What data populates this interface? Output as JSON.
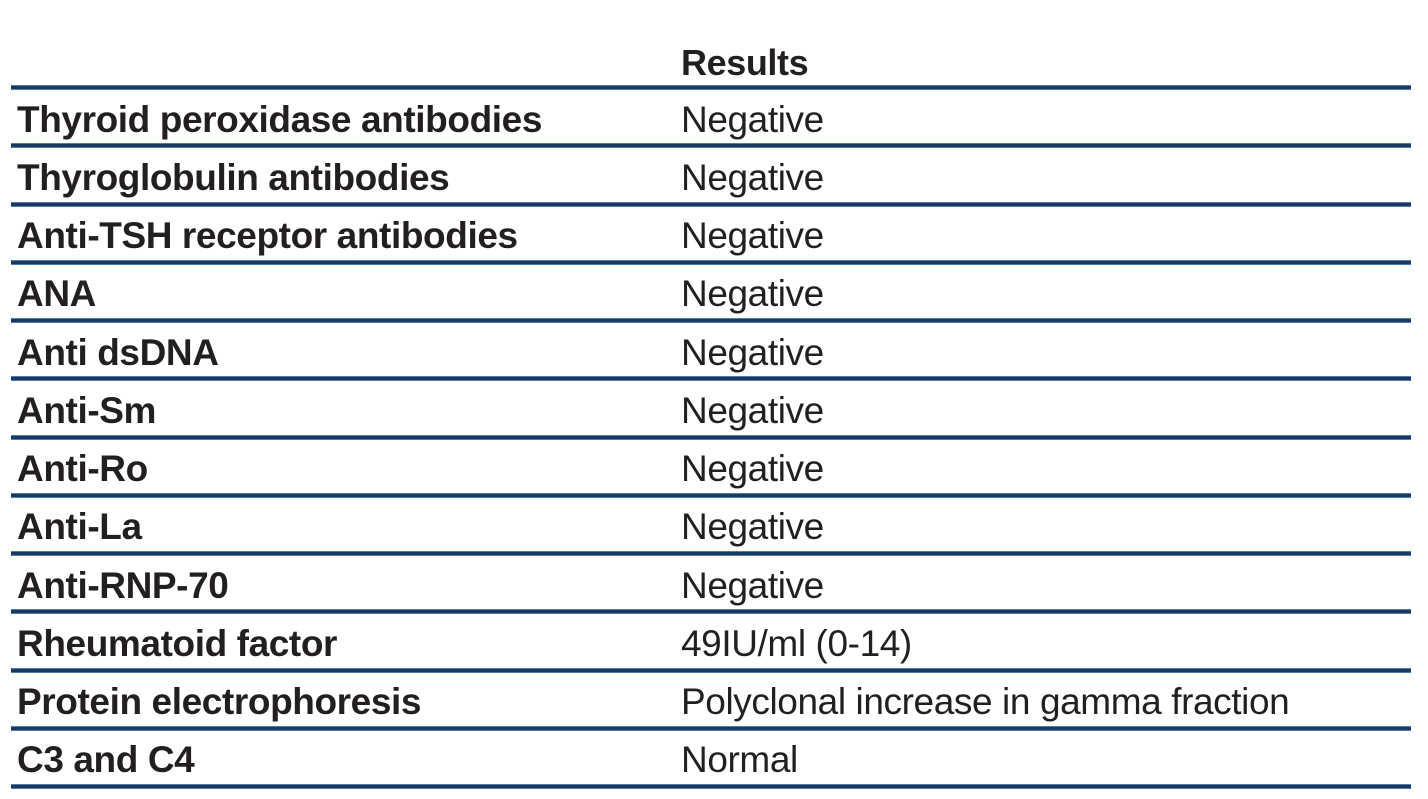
{
  "table": {
    "test_column_header": "",
    "results_column_header": "Results",
    "rows": [
      {
        "test": "Thyroid peroxidase antibodies",
        "result": "Negative"
      },
      {
        "test": "Thyroglobulin antibodies",
        "result": "Negative"
      },
      {
        "test": "Anti-TSH receptor antibodies",
        "result": "Negative"
      },
      {
        "test": "ANA",
        "result": "Negative"
      },
      {
        "test": "Anti dsDNA",
        "result": "Negative"
      },
      {
        "test": "Anti-Sm",
        "result": "Negative"
      },
      {
        "test": "Anti-Ro",
        "result": "Negative"
      },
      {
        "test": "Anti-La",
        "result": "Negative"
      },
      {
        "test": "Anti-RNP-70",
        "result": "Negative"
      },
      {
        "test": "Rheumatoid factor",
        "result": "49IU/ml (0-14)"
      },
      {
        "test": "Protein electrophoresis",
        "result": "Polyclonal increase in gamma fraction"
      },
      {
        "test": "C3 and C4",
        "result": "Normal"
      }
    ]
  },
  "colors": {
    "text": "#231f20",
    "rule_edge": "#4f7dab",
    "rule_core": "#1c3a60",
    "background": "#ffffff"
  }
}
